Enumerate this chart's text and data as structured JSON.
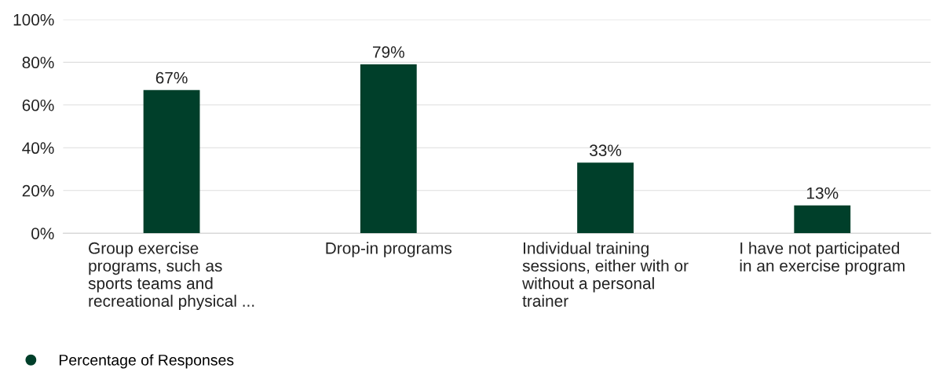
{
  "chart_data": {
    "type": "bar",
    "categories": [
      "Group exercise\nprograms, such as\nsports teams and\nrecreational physical ...",
      "Drop-in programs",
      "Individual training\nsessions, either with or\nwithout a personal\ntrainer",
      "I have not participated\nin an exercise program"
    ],
    "series": [
      {
        "name": "Percentage of Responses",
        "color": "#003f2a",
        "values": [
          67,
          79,
          33,
          13
        ],
        "value_labels": [
          "67%",
          "79%",
          "33%",
          "13%"
        ]
      }
    ],
    "ylim": [
      0,
      100
    ],
    "yticks": [
      {
        "value": 0,
        "label": "0%"
      },
      {
        "value": 20,
        "label": "20%"
      },
      {
        "value": 40,
        "label": "40%"
      },
      {
        "value": 60,
        "label": "60%"
      },
      {
        "value": 80,
        "label": "80%"
      },
      {
        "value": 100,
        "label": "100%"
      }
    ],
    "grid": "y",
    "legend": "bottom left"
  }
}
